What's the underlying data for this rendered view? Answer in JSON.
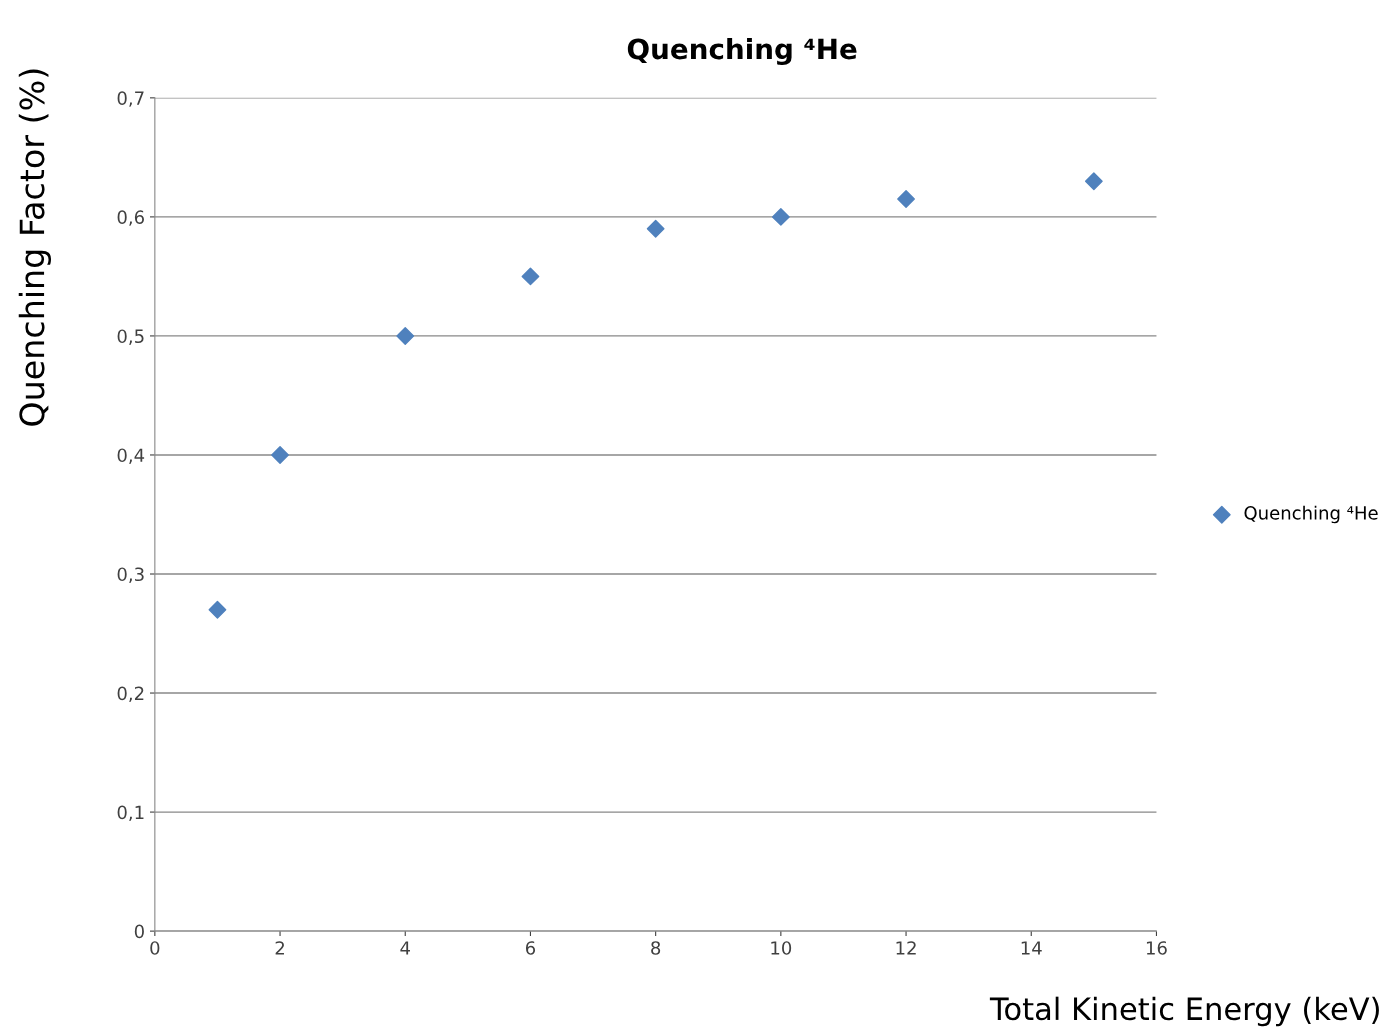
{
  "chart_data": {
    "type": "scatter",
    "title": "Quenching ⁴He",
    "xlabel": "Total Kinetic Energy (keV)",
    "ylabel": "Quenching Factor (%)",
    "x": [
      1,
      2,
      4,
      6,
      8,
      10,
      12,
      15
    ],
    "series": [
      {
        "name": "Quenching ⁴He",
        "color": "#4f81bd",
        "values": [
          0.27,
          0.4,
          0.5,
          0.55,
          0.59,
          0.6,
          0.615,
          0.63
        ]
      }
    ],
    "xlim": [
      0,
      16
    ],
    "xticks": [
      0,
      2,
      4,
      6,
      8,
      10,
      12,
      14,
      16
    ],
    "ylim": [
      0,
      0.7
    ],
    "yticks": [
      {
        "value": 0,
        "label": "0"
      },
      {
        "value": 0.1,
        "label": "0,1"
      },
      {
        "value": 0.2,
        "label": "0,2"
      },
      {
        "value": 0.3,
        "label": "0,3"
      },
      {
        "value": 0.4,
        "label": "0,4"
      },
      {
        "value": 0.5,
        "label": "0,5"
      },
      {
        "value": 0.6,
        "label": "0,6"
      },
      {
        "value": 0.7,
        "label": "0,7"
      }
    ],
    "grid": "y",
    "legend": "right",
    "marker": "diamond"
  }
}
